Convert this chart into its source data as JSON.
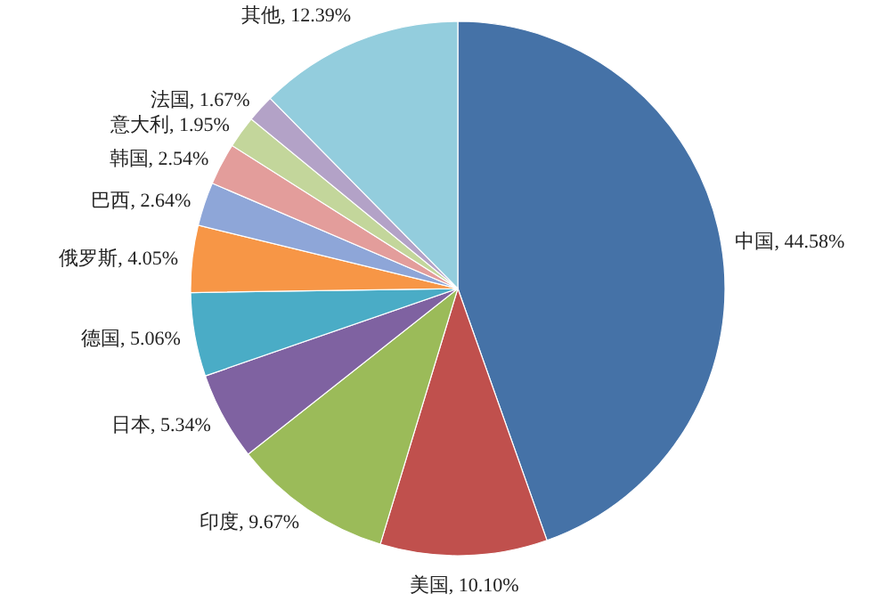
{
  "chart_data": {
    "type": "pie",
    "categories": [
      "中国",
      "美国",
      "印度",
      "日本",
      "德国",
      "俄罗斯",
      "巴西",
      "韩国",
      "意大利",
      "法国",
      "其他"
    ],
    "values": [
      44.58,
      10.1,
      9.67,
      5.34,
      5.06,
      4.05,
      2.64,
      2.54,
      1.95,
      1.67,
      12.39
    ],
    "value_labels": [
      "44.58%",
      "10.10%",
      "9.67%",
      "5.34%",
      "5.06%",
      "4.05%",
      "2.64%",
      "2.54%",
      "1.95%",
      "1.67%",
      "12.39%"
    ],
    "colors": [
      "#4572a7",
      "#c0504d",
      "#9bbb59",
      "#7f62a1",
      "#4aacc6",
      "#f79646",
      "#8ea6d8",
      "#e39d9b",
      "#c3d69b",
      "#b3a2c7",
      "#93cddd"
    ],
    "legend": false
  }
}
